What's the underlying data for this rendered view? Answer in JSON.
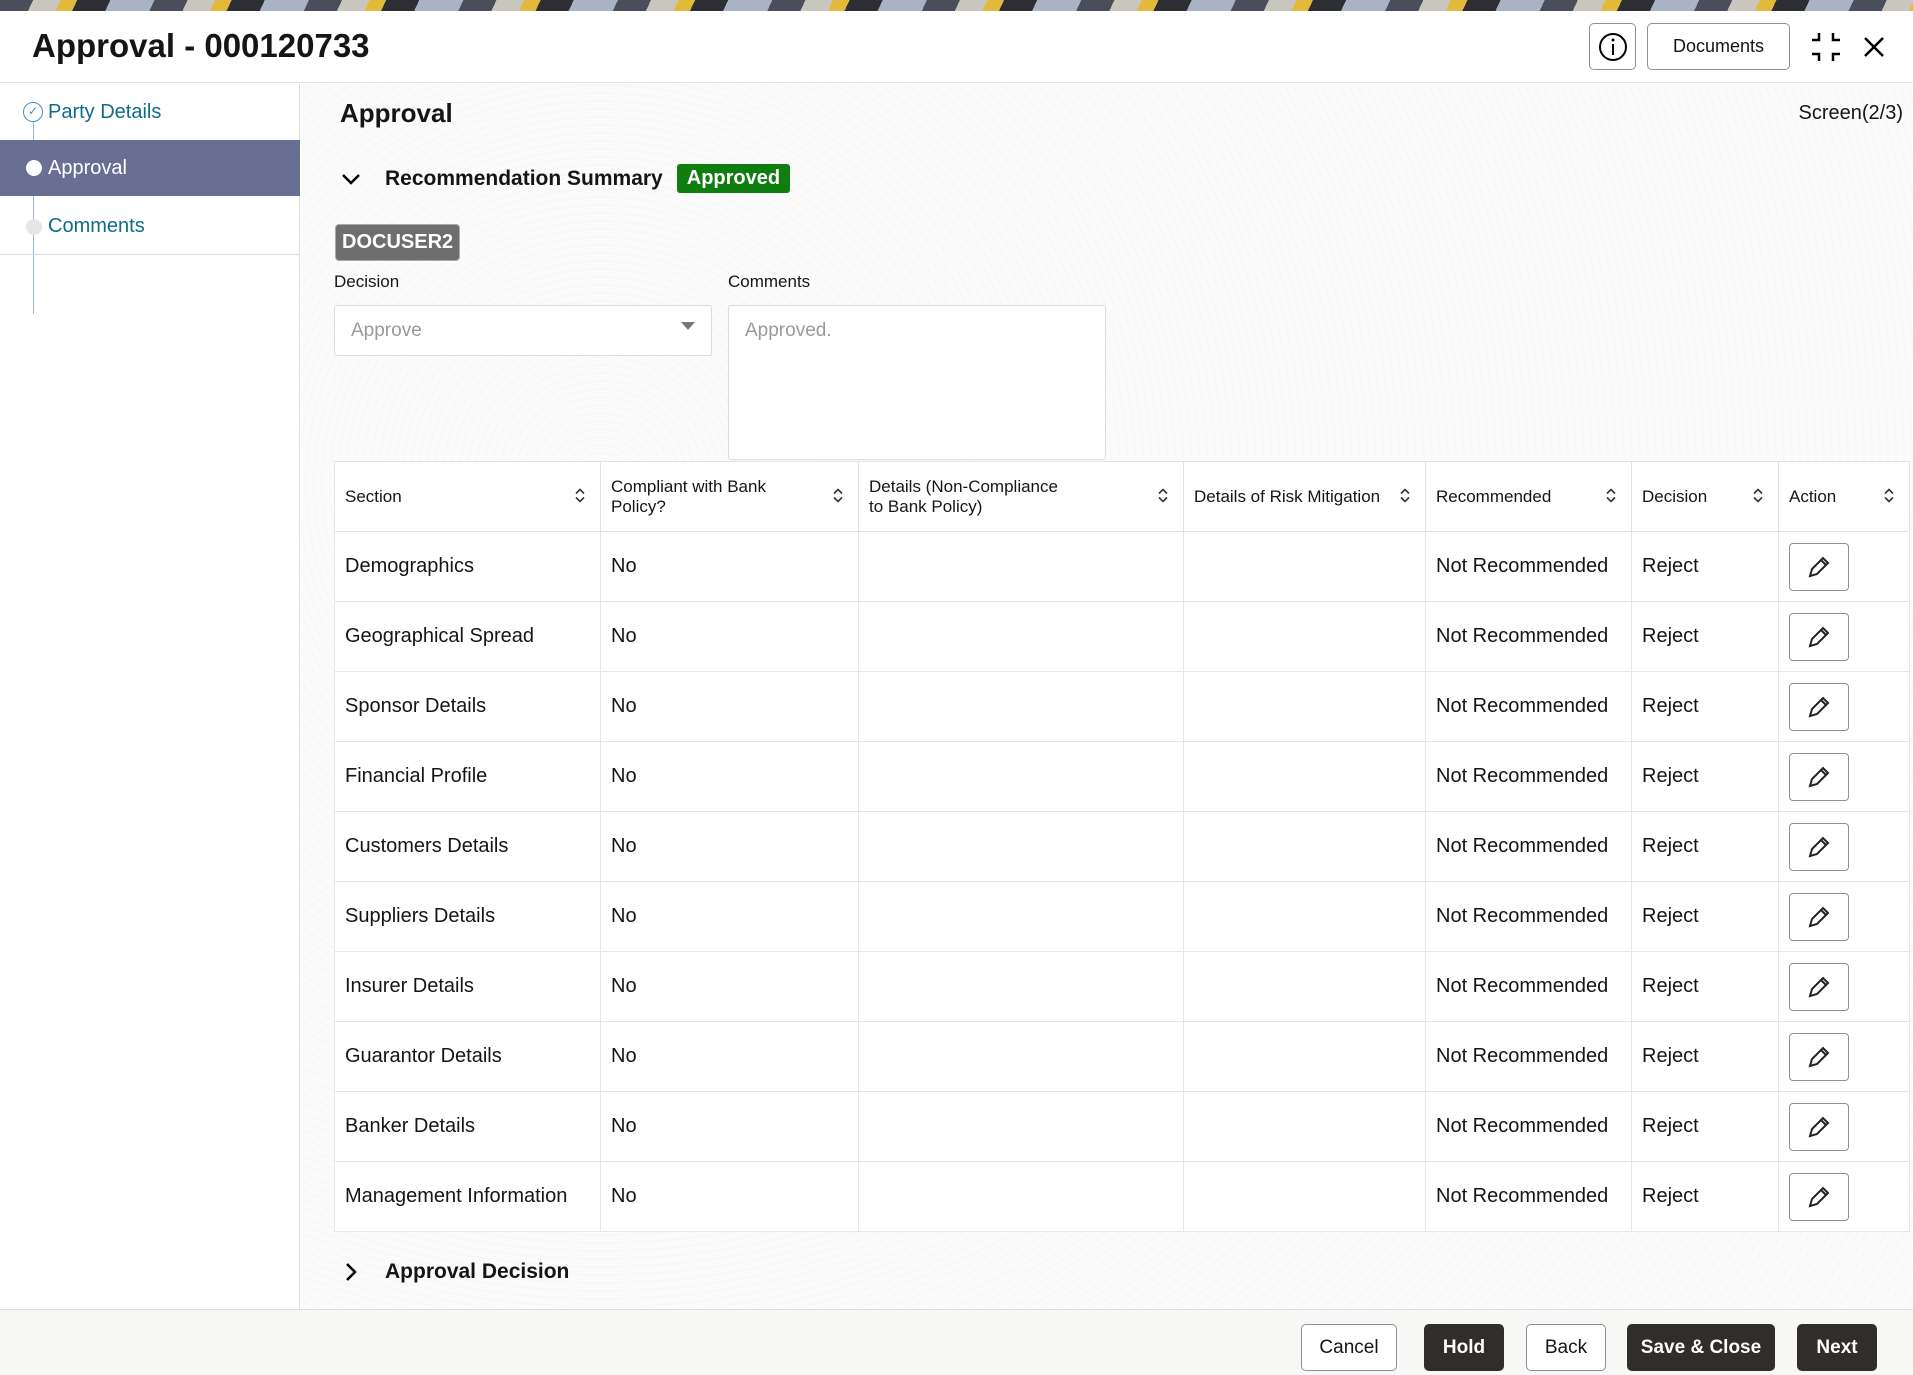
{
  "header": {
    "title": "Approval - 000120733",
    "info_icon": "info-icon",
    "documents_label": "Documents",
    "collapse_icon": "collapse-icon",
    "close_icon": "close-icon"
  },
  "sidebar": {
    "items": [
      {
        "label": "Party Details",
        "state": "completed"
      },
      {
        "label": "Approval",
        "state": "active"
      },
      {
        "label": "Comments",
        "state": "pending"
      }
    ]
  },
  "main": {
    "heading": "Approval",
    "screen_indicator": "Screen(2/3)",
    "recommendation_summary": {
      "title": "Recommendation Summary",
      "status": "Approved",
      "status_color": "#107d10"
    },
    "user_badge": "DOCUSER2",
    "decision": {
      "label": "Decision",
      "value": "Approve"
    },
    "comments": {
      "label": "Comments",
      "value": "Approved."
    },
    "table": {
      "headers": [
        "Section",
        "Compliant with Bank Policy?",
        "Details (Non-Compliance to Bank Policy)",
        "Details of Risk Mitigation",
        "Recommended",
        "Decision",
        "Action"
      ],
      "rows": [
        {
          "section": "Demographics",
          "compliant": "No",
          "details": "",
          "mitigation": "",
          "recommended": "Not Recommended",
          "decision": "Reject"
        },
        {
          "section": "Geographical Spread",
          "compliant": "No",
          "details": "",
          "mitigation": "",
          "recommended": "Not Recommended",
          "decision": "Reject"
        },
        {
          "section": "Sponsor Details",
          "compliant": "No",
          "details": "",
          "mitigation": "",
          "recommended": "Not Recommended",
          "decision": "Reject"
        },
        {
          "section": "Financial Profile",
          "compliant": "No",
          "details": "",
          "mitigation": "",
          "recommended": "Not Recommended",
          "decision": "Reject"
        },
        {
          "section": "Customers Details",
          "compliant": "No",
          "details": "",
          "mitigation": "",
          "recommended": "Not Recommended",
          "decision": "Reject"
        },
        {
          "section": "Suppliers Details",
          "compliant": "No",
          "details": "",
          "mitigation": "",
          "recommended": "Not Recommended",
          "decision": "Reject"
        },
        {
          "section": "Insurer Details",
          "compliant": "No",
          "details": "",
          "mitigation": "",
          "recommended": "Not Recommended",
          "decision": "Reject"
        },
        {
          "section": "Guarantor Details",
          "compliant": "No",
          "details": "",
          "mitigation": "",
          "recommended": "Not Recommended",
          "decision": "Reject"
        },
        {
          "section": "Banker Details",
          "compliant": "No",
          "details": "",
          "mitigation": "",
          "recommended": "Not Recommended",
          "decision": "Reject"
        },
        {
          "section": "Management Information",
          "compliant": "No",
          "details": "",
          "mitigation": "",
          "recommended": "Not Recommended",
          "decision": "Reject"
        }
      ]
    },
    "approval_decision": {
      "title": "Approval Decision"
    }
  },
  "footer": {
    "cancel": "Cancel",
    "hold": "Hold",
    "back": "Back",
    "save_close": "Save & Close",
    "next": "Next"
  }
}
